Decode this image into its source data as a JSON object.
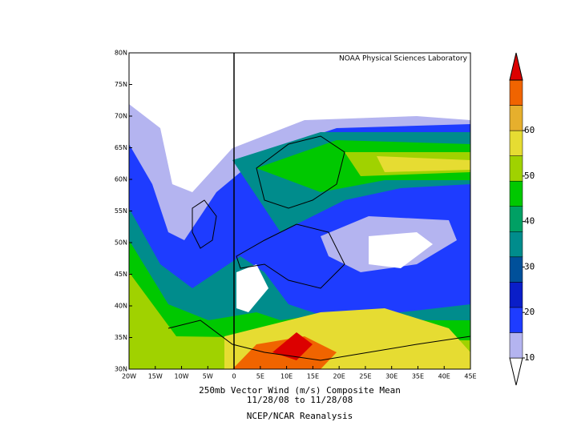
{
  "map": {
    "credit": "NOAA Physical Sciences Laboratory",
    "lat_labels": [
      "80N",
      "75N",
      "70N",
      "65N",
      "60N",
      "55N",
      "50N",
      "45N",
      "40N",
      "35N",
      "30N"
    ],
    "lon_labels": [
      "20W",
      "15W",
      "10W",
      "5W",
      "0",
      "5E",
      "10E",
      "15E",
      "20E",
      "25E",
      "30E",
      "35E",
      "40E",
      "45E"
    ],
    "title": "250mb Vector Wind (m/s) Composite Mean",
    "dates": "11/28/08  to 11/28/08",
    "source": "NCEP/NCAR Reanalysis"
  },
  "colorbar": {
    "ticks": [
      10,
      20,
      30,
      40,
      50,
      60
    ],
    "colors": [
      "#ffffff",
      "#b4b4f0",
      "#1e3cff",
      "#0a1ec8",
      "#00509a",
      "#008c8c",
      "#00a064",
      "#00c800",
      "#a0d200",
      "#e6dc32",
      "#e6af2d",
      "#f06400",
      "#dc0000"
    ]
  }
}
